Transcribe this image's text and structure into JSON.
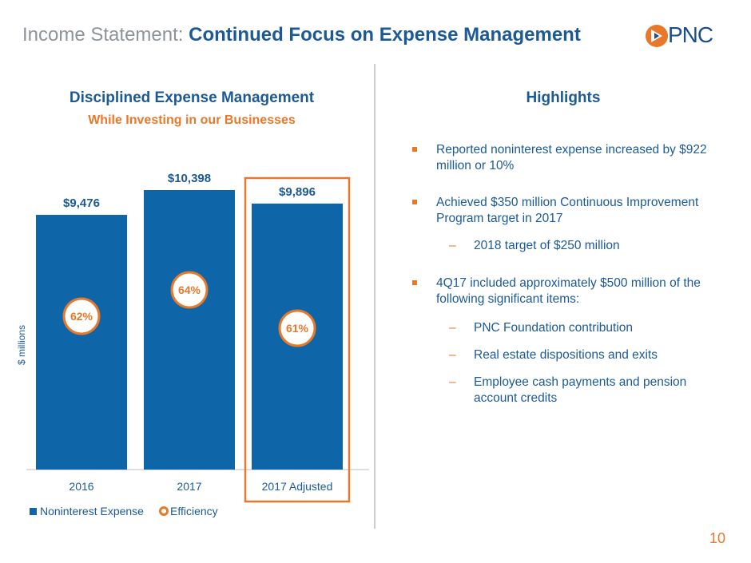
{
  "header": {
    "title_light": "Income Statement:",
    "title_bold": "Continued Focus on Expense Management",
    "logo_text": "PNC"
  },
  "chart_data": {
    "type": "bar",
    "title": "Disciplined Expense Management",
    "subtitle": "While Investing in our Businesses",
    "ylabel": "$ millions",
    "categories": [
      "2016",
      "2017",
      "2017 Adjusted"
    ],
    "series": [
      {
        "name": "Noninterest Expense",
        "values": [
          9476,
          10398,
          9896
        ],
        "labels": [
          "$9,476",
          "$10,398",
          "$9,896"
        ],
        "color": "#0e66a8"
      },
      {
        "name": "Efficiency",
        "values": [
          62,
          64,
          61
        ],
        "labels": [
          "62%",
          "64%",
          "61%"
        ],
        "color": "#e8782a"
      }
    ],
    "highlighted_category": "2017 Adjusted",
    "ylim": [
      0,
      11000
    ]
  },
  "highlights": {
    "title": "Highlights",
    "items": [
      {
        "type": "bullet",
        "text": "Reported noninterest expense increased by $922 million or 10%"
      },
      {
        "type": "bullet",
        "text": "Achieved $350 million Continuous Improvement Program target in 2017"
      },
      {
        "type": "sub",
        "text": "2018 target of $250 million"
      },
      {
        "type": "bullet",
        "text": "4Q17 included approximately $500 million of the following significant items:"
      },
      {
        "type": "sub",
        "text": "PNC Foundation contribution"
      },
      {
        "type": "sub",
        "text": "Real estate dispositions and exits"
      },
      {
        "type": "sub",
        "text": "Employee cash payments and pension account credits"
      }
    ]
  },
  "page_number": "10",
  "colors": {
    "brand_blue": "#1c5a96",
    "bar_blue": "#0e66a8",
    "accent_orange": "#e8782a"
  }
}
